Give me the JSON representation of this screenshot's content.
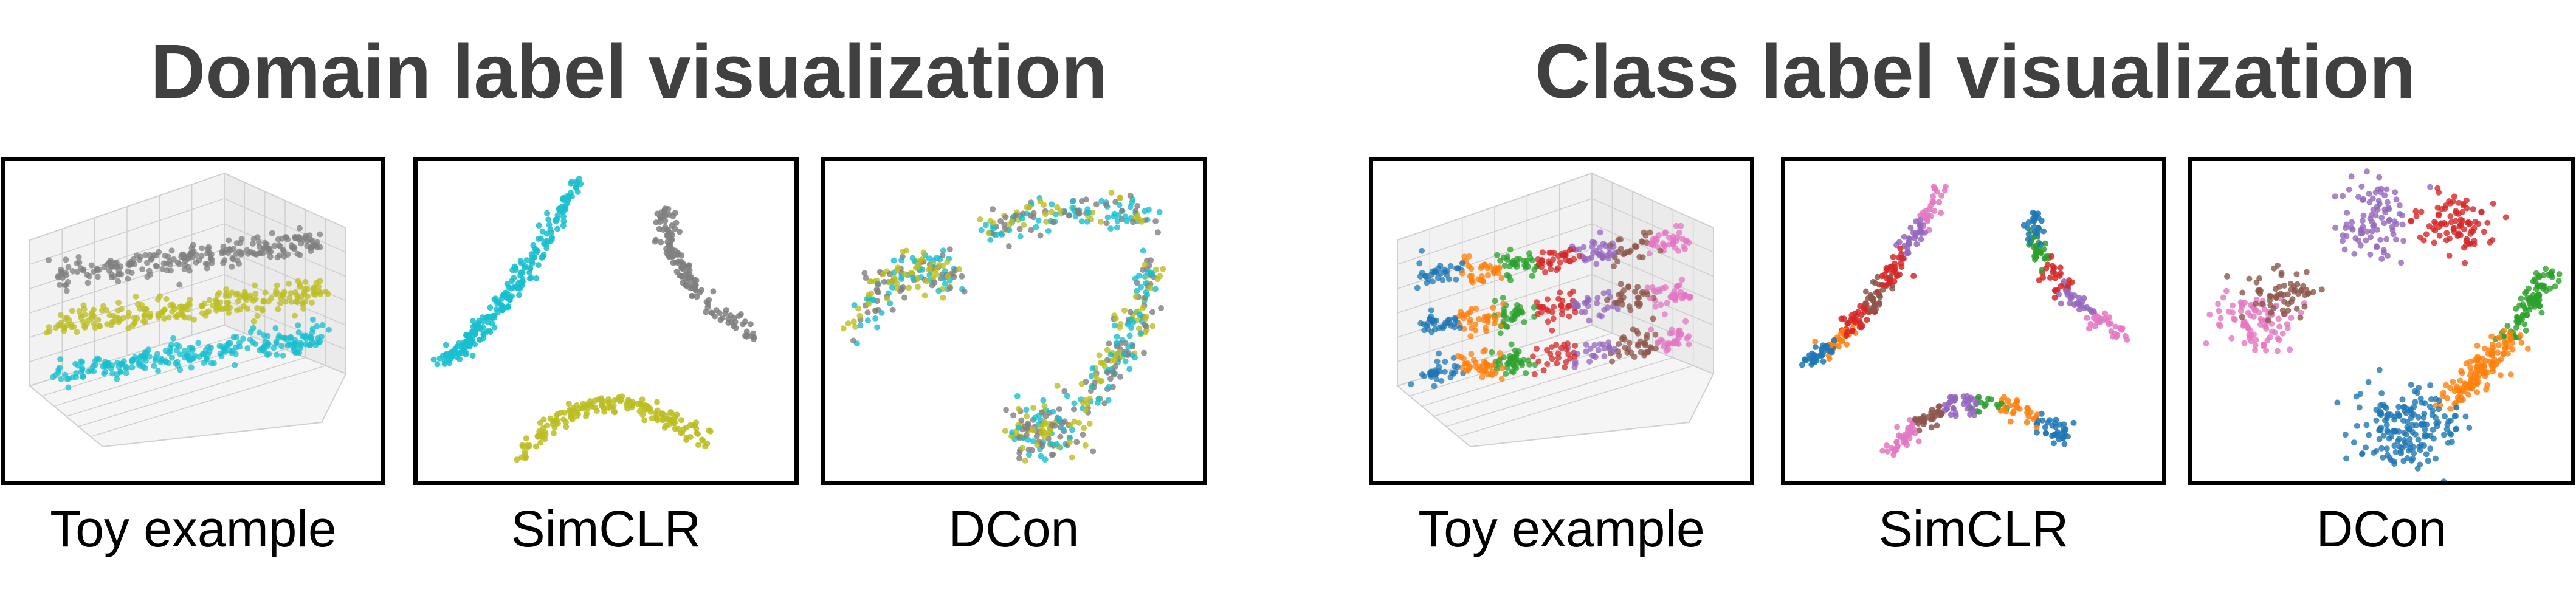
{
  "titles": {
    "domain": "Domain label visualization",
    "class": "Class label visualization"
  },
  "captions": {
    "domain_toy": "Toy example",
    "domain_simclr": "SimCLR",
    "domain_dcon": "DCon",
    "class_toy": "Toy example",
    "class_simclr": "SimCLR",
    "class_dcon": "DCon"
  },
  "colors": {
    "title": "#404040",
    "frame": "#000000",
    "domain": [
      "#7f7f7f",
      "#bcbd22",
      "#17becf"
    ],
    "class": [
      "#1f77b4",
      "#ff7f0e",
      "#2ca02c",
      "#d62728",
      "#9467bd",
      "#8c564b",
      "#e377c2"
    ]
  }
}
